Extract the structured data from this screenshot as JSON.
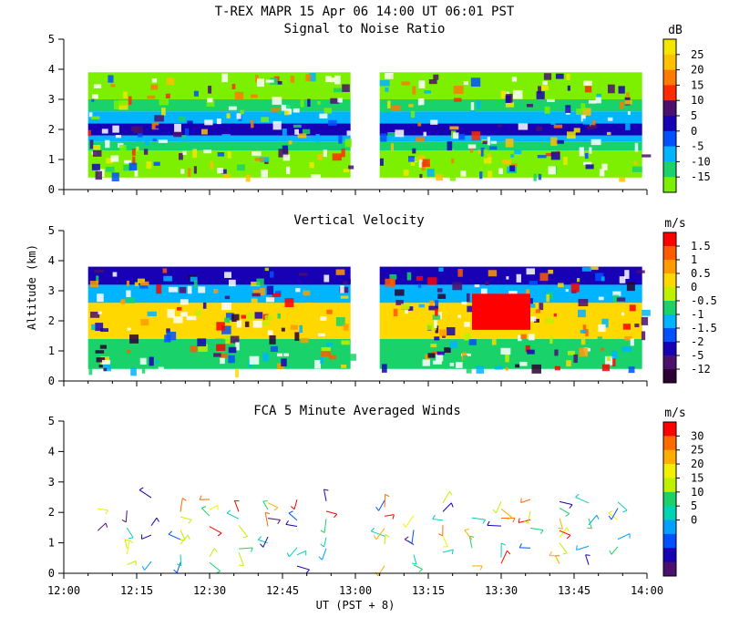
{
  "figure": {
    "title": "T-REX  MAPR 15 Apr 06  14:00 UT  06:01  PST",
    "xlabel": "UT  (PST + 8)",
    "ylabel": "Altitude (km)",
    "x_ticks": [
      "12:00",
      "12:15",
      "12:30",
      "12:45",
      "13:00",
      "13:15",
      "13:30",
      "13:45",
      "14:00"
    ]
  },
  "chart_data": [
    {
      "type": "heatmap",
      "title": "Signal to Noise Ratio",
      "xlabel": "UT  (PST + 8)",
      "ylabel": "Altitude (km)",
      "xlim": [
        "12:00",
        "14:00"
      ],
      "ylim": [
        0,
        5
      ],
      "y_ticks": [
        0,
        1,
        2,
        3,
        4,
        5
      ],
      "colorbar": {
        "unit": "dB",
        "labels": [
          "25",
          "20",
          "15",
          "10",
          "5",
          "0",
          "-5",
          "-10",
          "-15"
        ],
        "colors": [
          "#f5e600",
          "#ffc000",
          "#ff7a00",
          "#ff2a00",
          "#4b0f6e",
          "#1800b4",
          "#0050ff",
          "#00b4ff",
          "#19d36a",
          "#7cf000"
        ]
      },
      "data_segments": [
        {
          "start": "12:05",
          "end": "12:59"
        },
        {
          "start": "13:05",
          "end": "13:59"
        }
      ],
      "bands": [
        {
          "low": 0.4,
          "high": 1.3,
          "color": "#7cf000"
        },
        {
          "low": 1.3,
          "high": 1.6,
          "color": "#19d36a"
        },
        {
          "low": 1.6,
          "high": 1.8,
          "color": "#00b4ff"
        },
        {
          "low": 1.8,
          "high": 2.2,
          "color": "#1800b4"
        },
        {
          "low": 2.2,
          "high": 2.6,
          "color": "#00b4ff"
        },
        {
          "low": 2.6,
          "high": 3.0,
          "color": "#19d36a"
        },
        {
          "low": 3.0,
          "high": 3.9,
          "color": "#7cf000"
        }
      ]
    },
    {
      "type": "heatmap",
      "title": "Vertical Velocity",
      "xlabel": "UT  (PST + 8)",
      "ylabel": "Altitude (km)",
      "xlim": [
        "12:00",
        "14:00"
      ],
      "ylim": [
        0,
        5
      ],
      "y_ticks": [
        0,
        1,
        2,
        3,
        4,
        5
      ],
      "colorbar": {
        "unit": "m/s",
        "labels": [
          "1.5",
          "1",
          "0.5",
          "0",
          "-0.5",
          "-1",
          "-1.5",
          "-2",
          "-5",
          "-12"
        ],
        "colors": [
          "#ff0000",
          "#ff5a00",
          "#ff9b00",
          "#ffd800",
          "#bff000",
          "#19d36a",
          "#00b4ff",
          "#0050ff",
          "#1800b4",
          "#4b0f6e",
          "#2a0030"
        ]
      },
      "data_segments": [
        {
          "start": "12:05",
          "end": "12:59"
        },
        {
          "start": "13:05",
          "end": "13:59"
        }
      ],
      "bands": [
        {
          "low": 0.4,
          "high": 1.4,
          "color": "#19d36a"
        },
        {
          "low": 1.4,
          "high": 2.6,
          "color": "#ffd800"
        },
        {
          "low": 2.6,
          "high": 3.2,
          "color": "#00b4ff"
        },
        {
          "low": 3.2,
          "high": 3.8,
          "color": "#1800b4"
        }
      ],
      "updraft_region": {
        "start": "13:24",
        "end": "13:36",
        "low": 1.7,
        "high": 2.9,
        "color": "#ff0000"
      }
    },
    {
      "type": "scatter",
      "title": "FCA 5 Minute Averaged Winds",
      "xlabel": "UT  (PST + 8)",
      "ylabel": "Altitude (km)",
      "xlim": [
        "12:00",
        "14:00"
      ],
      "ylim": [
        0,
        5
      ],
      "y_ticks": [
        0,
        1,
        2,
        3,
        4,
        5
      ],
      "colorbar": {
        "unit": "m/s",
        "labels": [
          "30",
          "25",
          "20",
          "15",
          "10",
          "5",
          "0"
        ],
        "colors": [
          "#ff0000",
          "#ff6a00",
          "#ffae00",
          "#f0f000",
          "#bff000",
          "#19d36a",
          "#00d2b4",
          "#00a0ff",
          "#0050ff",
          "#1800b4",
          "#4b0f6e"
        ]
      },
      "barb_times": [
        "12:07",
        "12:13",
        "12:18",
        "12:24",
        "12:30",
        "12:36",
        "12:42",
        "12:48",
        "12:54",
        "13:06",
        "13:12",
        "13:18",
        "13:24",
        "13:30",
        "13:36",
        "13:42",
        "13:48",
        "13:54"
      ],
      "barb_altitudes": [
        0.3,
        0.6,
        0.9,
        1.2,
        1.5,
        1.8,
        2.1,
        2.4
      ]
    }
  ]
}
